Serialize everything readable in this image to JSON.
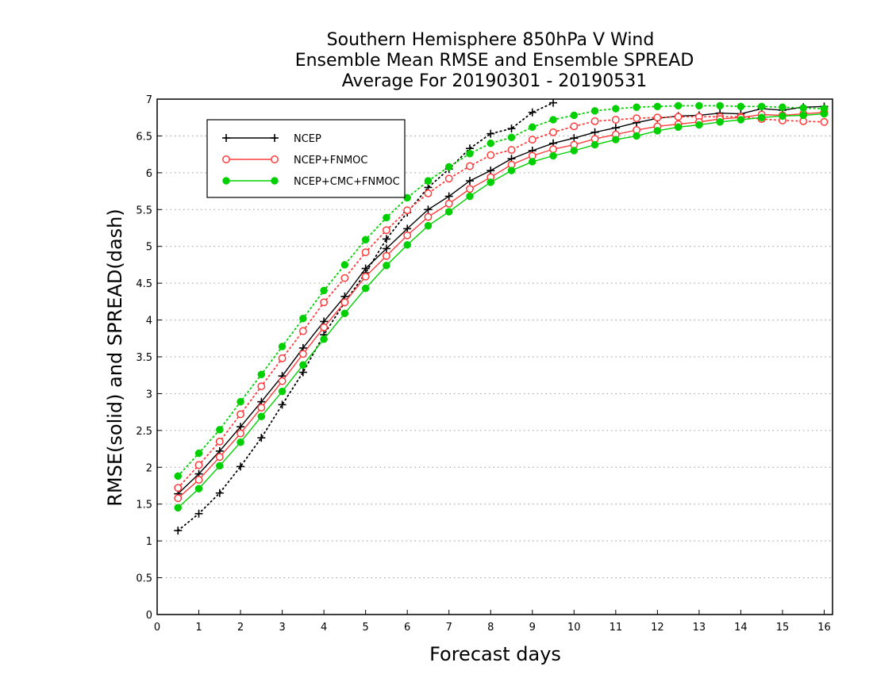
{
  "chart_data": {
    "type": "line",
    "title_lines": [
      "Southern Hemisphere 850hPa V Wind",
      "Ensemble Mean RMSE and Ensemble SPREAD",
      "Average For 20190301 - 20190531"
    ],
    "xlabel": "Forecast days",
    "ylabel": "RMSE(solid) and SPREAD(dash)",
    "xlim": [
      0,
      16.2
    ],
    "ylim": [
      0,
      7
    ],
    "xticks": [
      0,
      1,
      2,
      3,
      4,
      5,
      6,
      7,
      8,
      9,
      10,
      11,
      12,
      13,
      14,
      15,
      16
    ],
    "yticks": [
      0,
      0.5,
      1,
      1.5,
      2,
      2.5,
      3,
      3.5,
      4,
      4.5,
      5,
      5.5,
      6,
      6.5,
      7
    ],
    "ytick_labels": [
      "0",
      "0.5",
      "1",
      "1.5",
      "2",
      "2.5",
      "3",
      "3.5",
      "4",
      "4.5",
      "5",
      "5.5",
      "6",
      "6.5",
      "7"
    ],
    "grid": "horizontal dotted",
    "legend_position": "top-left",
    "x": [
      0.5,
      1,
      1.5,
      2,
      2.5,
      3,
      3.5,
      4,
      4.5,
      5,
      5.5,
      6,
      6.5,
      7,
      7.5,
      8,
      8.5,
      9,
      9.5,
      10,
      10.5,
      11,
      11.5,
      12,
      12.5,
      13,
      13.5,
      14,
      14.5,
      15,
      15.5,
      16
    ],
    "series": [
      {
        "name": "NCEP",
        "color": "#000000",
        "marker": "plus",
        "rmse": [
          1.64,
          1.91,
          2.22,
          2.55,
          2.89,
          3.24,
          3.62,
          3.98,
          4.32,
          4.7,
          4.97,
          5.24,
          5.5,
          5.68,
          5.89,
          6.03,
          6.19,
          6.3,
          6.4,
          6.47,
          6.55,
          6.61,
          6.68,
          6.74,
          6.77,
          6.78,
          6.81,
          6.8,
          6.87,
          6.85,
          6.89,
          6.9
        ],
        "spread": [
          1.14,
          1.37,
          1.65,
          2.01,
          2.4,
          2.85,
          3.29,
          3.8,
          4.24,
          4.64,
          5.1,
          5.46,
          5.8,
          6.05,
          6.33,
          6.53,
          6.6,
          6.82,
          6.95,
          7.0,
          7.0,
          7.0,
          7.0,
          7.0,
          7.0,
          7.0,
          7.0,
          7.0,
          7.0,
          7.0,
          7.0,
          7.0
        ]
      },
      {
        "name": "NCEP+FNMOC",
        "color": "#ff3b3b",
        "marker": "open-circle",
        "rmse": [
          1.58,
          1.83,
          2.14,
          2.46,
          2.81,
          3.17,
          3.54,
          3.9,
          4.24,
          4.59,
          4.87,
          5.15,
          5.4,
          5.58,
          5.78,
          5.94,
          6.11,
          6.23,
          6.32,
          6.38,
          6.46,
          6.52,
          6.58,
          6.63,
          6.66,
          6.69,
          6.73,
          6.75,
          6.79,
          6.78,
          6.8,
          6.82
        ],
        "spread": [
          1.72,
          2.03,
          2.35,
          2.72,
          3.1,
          3.48,
          3.85,
          4.24,
          4.57,
          4.92,
          5.22,
          5.49,
          5.72,
          5.92,
          6.09,
          6.24,
          6.31,
          6.45,
          6.55,
          6.63,
          6.7,
          6.72,
          6.74,
          6.75,
          6.76,
          6.76,
          6.76,
          6.76,
          6.73,
          6.71,
          6.7,
          6.69
        ]
      },
      {
        "name": "NCEP+CMC+FNMOC",
        "color": "#00d000",
        "marker": "filled-circle",
        "rmse": [
          1.45,
          1.71,
          2.02,
          2.34,
          2.69,
          3.03,
          3.39,
          3.74,
          4.09,
          4.43,
          4.74,
          5.02,
          5.28,
          5.47,
          5.68,
          5.87,
          6.03,
          6.15,
          6.23,
          6.3,
          6.38,
          6.45,
          6.5,
          6.57,
          6.62,
          6.65,
          6.69,
          6.72,
          6.75,
          6.77,
          6.78,
          6.8
        ],
        "spread": [
          1.88,
          2.19,
          2.51,
          2.89,
          3.26,
          3.64,
          4.02,
          4.4,
          4.75,
          5.09,
          5.39,
          5.66,
          5.89,
          6.08,
          6.26,
          6.4,
          6.48,
          6.62,
          6.72,
          6.78,
          6.84,
          6.87,
          6.89,
          6.9,
          6.91,
          6.91,
          6.91,
          6.9,
          6.9,
          6.89,
          6.88,
          6.87
        ]
      }
    ]
  }
}
